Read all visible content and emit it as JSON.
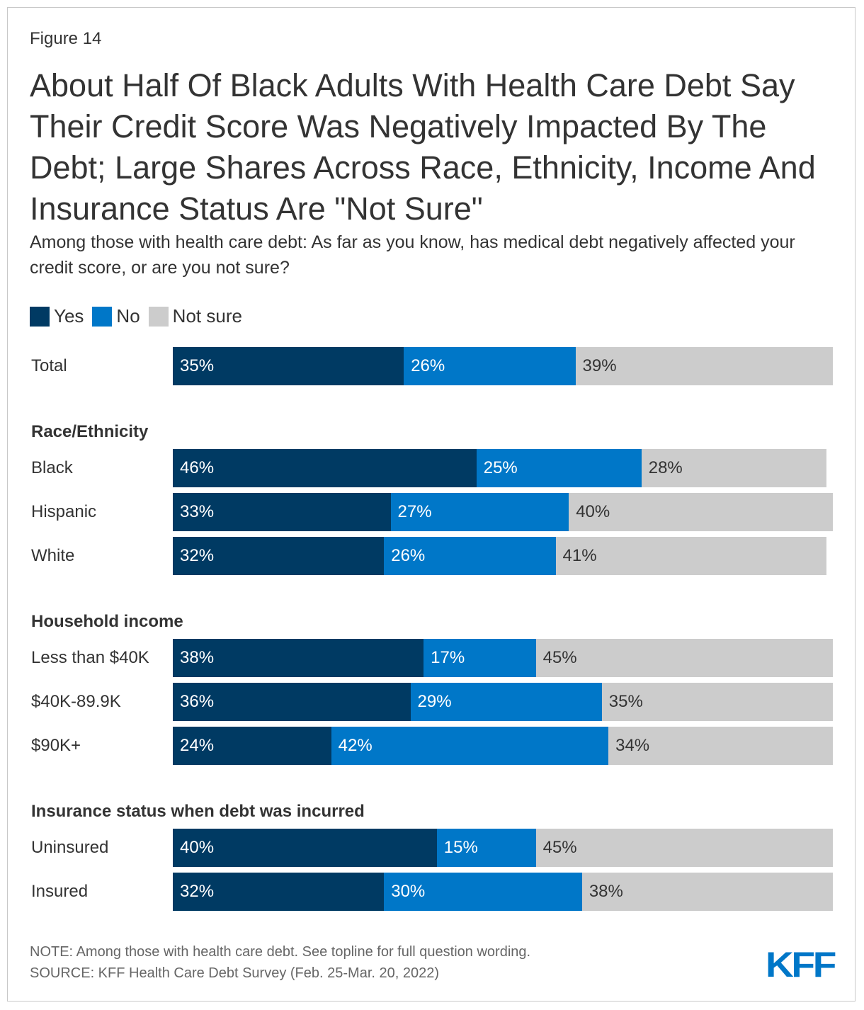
{
  "figure_label": "Figure 14",
  "title": "About Half Of Black Adults With Health Care Debt Say Their Credit Score Was Negatively Impacted By The Debt; Large Shares Across Race, Ethnicity, Income And Insurance Status Are \"Not Sure\"",
  "subtitle": "Among those with health care debt: As far as you know, has medical debt negatively affected your credit score, or are you not sure?",
  "note": "NOTE: Among those with health care debt. See topline for full question wording.",
  "source": "SOURCE: KFF Health Care Debt Survey (Feb. 25-Mar. 20, 2022)",
  "logo": "KFF",
  "chart_data": {
    "type": "bar",
    "orientation": "horizontal",
    "stacked": true,
    "legend_position": "top-left",
    "grid": false,
    "xlim": [
      0,
      100
    ],
    "series": [
      {
        "name": "Yes",
        "color": "#003a63"
      },
      {
        "name": "No",
        "color": "#0077c8"
      },
      {
        "name": "Not sure",
        "color": "#cccccc"
      }
    ],
    "groups": [
      {
        "header": "",
        "rows": [
          {
            "label": "Total",
            "values": [
              35,
              26,
              39
            ]
          }
        ]
      },
      {
        "header": "Race/Ethnicity",
        "rows": [
          {
            "label": "Black",
            "values": [
              46,
              25,
              28
            ]
          },
          {
            "label": "Hispanic",
            "values": [
              33,
              27,
              40
            ]
          },
          {
            "label": "White",
            "values": [
              32,
              26,
              41
            ]
          }
        ]
      },
      {
        "header": "Household income",
        "rows": [
          {
            "label": "Less than $40K",
            "values": [
              38,
              17,
              45
            ]
          },
          {
            "label": "$40K-89.9K",
            "values": [
              36,
              29,
              35
            ]
          },
          {
            "label": "$90K+",
            "values": [
              24,
              42,
              34
            ]
          }
        ]
      },
      {
        "header": "Insurance status when debt was incurred",
        "rows": [
          {
            "label": "Uninsured",
            "values": [
              40,
              15,
              45
            ]
          },
          {
            "label": "Insured",
            "values": [
              32,
              30,
              38
            ]
          }
        ]
      }
    ]
  }
}
